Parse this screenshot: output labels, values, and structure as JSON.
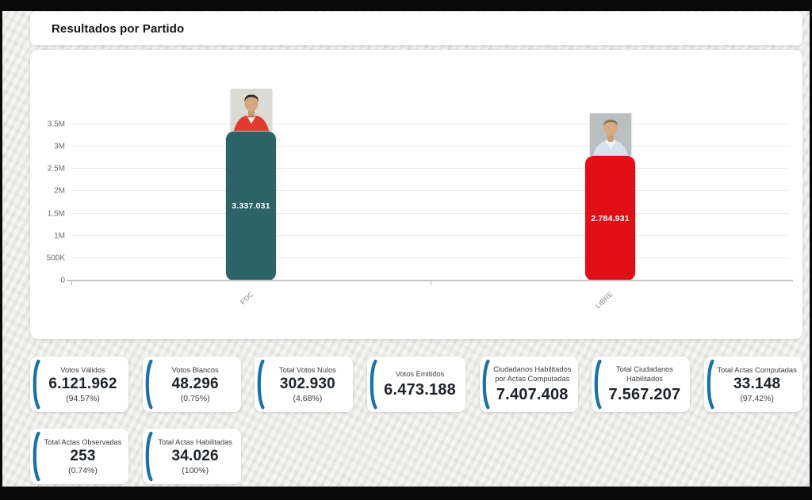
{
  "page": {
    "title": "Resultados por Partido"
  },
  "colors": {
    "pdc_bar": "#2b6367",
    "libre_bar": "#e10e15",
    "card_accent": "#1e6fa5",
    "page_bg": "#e9e8e4"
  },
  "chart_data": {
    "type": "bar",
    "title": "Resultados por Partido",
    "categories": [
      "PDC",
      "LIBRE"
    ],
    "values": [
      3337031,
      2784931
    ],
    "bar_labels": [
      "3.337.031",
      "2.784.931"
    ],
    "bar_colors": [
      "#2b6367",
      "#e10e15"
    ],
    "xlabel": "",
    "ylabel": "",
    "ylim": [
      0,
      3500000
    ],
    "ytick_labels": [
      "0",
      "500K",
      "1M",
      "1.5M",
      "2M",
      "2.5M",
      "3M",
      "3.5M"
    ],
    "grid": true,
    "legend": "none",
    "candidates": [
      {
        "party": "PDC",
        "photo": "candidate-red-jacket"
      },
      {
        "party": "LIBRE",
        "photo": "candidate-blue-shirt"
      }
    ]
  },
  "stats_row1": [
    {
      "label": "Votos Válidos",
      "value": "6.121.962",
      "percent": "(94.57%)"
    },
    {
      "label": "Votos Blancos",
      "value": "48.296",
      "percent": "(0.75%)"
    },
    {
      "label": "Total Votos Nulos",
      "value": "302.930",
      "percent": "(4.68%)"
    },
    {
      "label": "Votos Emitidos",
      "value": "6.473.188",
      "percent": ""
    },
    {
      "label": "Ciudadanos Habilitados por Actas Computadas",
      "value": "7.407.408",
      "percent": ""
    },
    {
      "label": "Total Ciudadanos Habilitados",
      "value": "7.567.207",
      "percent": ""
    },
    {
      "label": "Total Actas Computadas",
      "value": "33.148",
      "percent": "(97.42%)"
    }
  ],
  "stats_row2": [
    {
      "label": "Total Actas Observadas",
      "value": "253",
      "percent": "(0.74%)"
    },
    {
      "label": "Total Actas Habilitadas",
      "value": "34.026",
      "percent": "(100%)"
    }
  ]
}
